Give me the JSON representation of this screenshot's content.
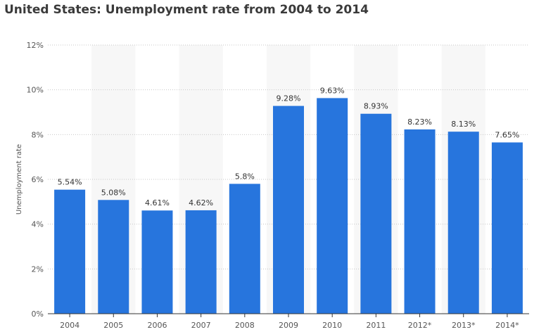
{
  "chart_data": {
    "type": "bar",
    "title": "United States: Unemployment rate from 2004 to 2014",
    "xlabel": "",
    "ylabel": "Unemployment rate",
    "categories": [
      "2004",
      "2005",
      "2006",
      "2007",
      "2008",
      "2009",
      "2010",
      "2011",
      "2012*",
      "2013*",
      "2014*"
    ],
    "values": [
      5.54,
      5.08,
      4.61,
      4.62,
      5.8,
      9.28,
      9.63,
      8.93,
      8.23,
      8.13,
      7.65
    ],
    "value_labels": [
      "5.54%",
      "5.08%",
      "4.61%",
      "4.62%",
      "5.8%",
      "9.28%",
      "9.63%",
      "8.93%",
      "8.23%",
      "8.13%",
      "7.65%"
    ],
    "ylim": [
      0,
      12
    ],
    "yticks": [
      0,
      2,
      4,
      6,
      8,
      10,
      12
    ],
    "ytick_labels": [
      "0%",
      "2%",
      "4%",
      "6%",
      "8%",
      "10%",
      "12%"
    ],
    "grid": true,
    "colors": {
      "bar": "#2775dd",
      "band": "#f7f7f7",
      "grid": "#c8c8c8",
      "axis": "#333333"
    }
  }
}
